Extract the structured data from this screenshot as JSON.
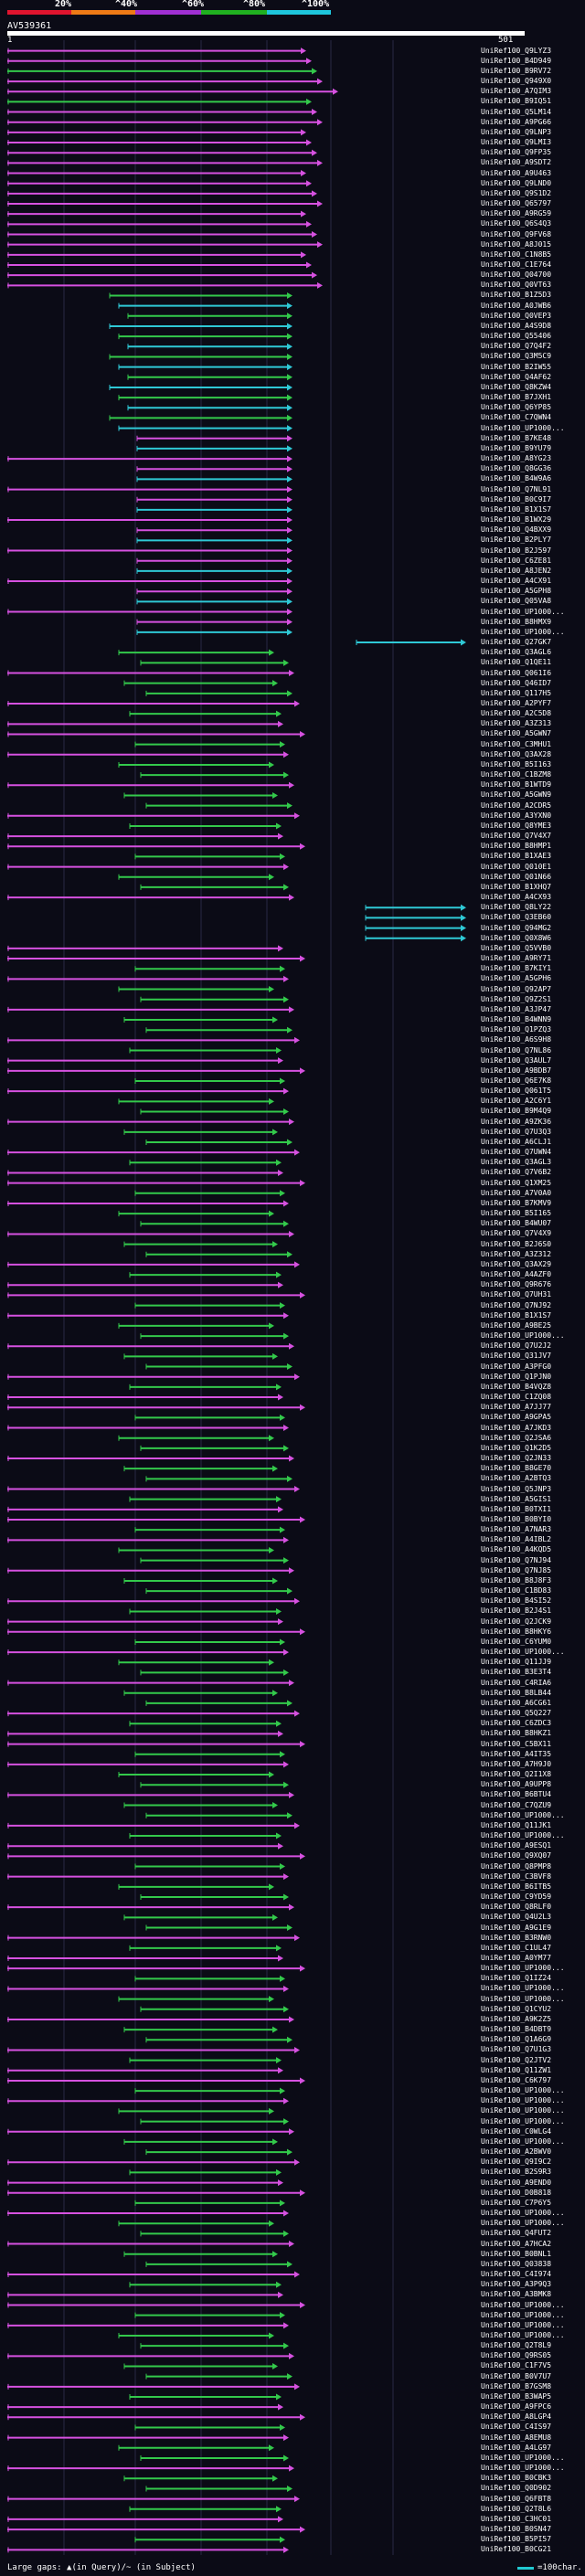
{
  "header": {
    "percent_labels": [
      "20%",
      "^40%",
      "^60%",
      "^80%",
      "^100%"
    ],
    "color_bands": [
      "#e0142e",
      "#ee7a16",
      "#a02fd2",
      "#20b020",
      "#1ec6dc"
    ],
    "query_id": "AV539361",
    "query_start": "1",
    "query_end": "501"
  },
  "colors": {
    "magenta": "#d651e0",
    "green": "#33c94b",
    "cyan": "#2fc9d6",
    "grid": "#2a2a44"
  },
  "hits": [
    "UniRef100_Q9LYZ3",
    "UniRef100_B4D949",
    "UniRef100_B9RV72",
    "UniRef100_Q949X0",
    "UniRef100_A7QIM3",
    "UniRef100_B9IQ51",
    "UniRef100_Q5LM14",
    "UniRef100_A9PG66",
    "UniRef100_Q9LNP3",
    "UniRef100_Q9LMI3",
    "UniRef100_Q9FP35",
    "UniRef100_A9SDT2",
    "UniRef100_A9U463",
    "UniRef100_Q9LND0",
    "UniRef100_Q9S1D2",
    "UniRef100_Q65797",
    "UniRef100_A9RG59",
    "UniRef100_Q6S4Q3",
    "UniRef100_Q9FV68",
    "UniRef100_A8J015",
    "UniRef100_C1N8B5",
    "UniRef100_C1E764",
    "UniRef100_Q04700",
    "UniRef100_Q0VT63",
    "UniRef100_B1Z5D3",
    "UniRef100_A0JWB6",
    "UniRef100_Q0VEP3",
    "UniRef100_A4S9D8",
    "UniRef100_Q55406",
    "UniRef100_Q7Q4F2",
    "UniRef100_Q3M5C9",
    "UniRef100_B2IW55",
    "UniRef100_Q4AF62",
    "UniRef100_Q8KZW4",
    "UniRef100_B7JXH1",
    "UniRef100_Q6YP85",
    "UniRef100_C7QWN4",
    "UniRef100_UP1000...",
    "UniRef100_B7KE48",
    "UniRef100_B9YU79",
    "UniRef100_A8YG23",
    "UniRef100_Q8GG36",
    "UniRef100_B4W9A6",
    "UniRef100_Q7NL91",
    "UniRef100_B0C9I7",
    "UniRef100_B1X1S7",
    "UniRef100_B1WX29",
    "UniRef100_Q4BXX9",
    "UniRef100_B2PLY7",
    "UniRef100_B2J597",
    "UniRef100_C6ZE81",
    "UniRef100_A8JEN2",
    "UniRef100_A4CX91",
    "UniRef100_A5GPH8",
    "UniRef100_Q05VA8",
    "UniRef100_UP1000...",
    "UniRef100_B8HMX9",
    "UniRef100_UP1000...",
    "UniRef100_Q27GK7",
    "UniRef100_Q3AGL6",
    "UniRef100_Q1QE11",
    "UniRef100_Q061I6",
    "UniRef100_Q46ID7",
    "UniRef100_Q117H5",
    "UniRef100_A2PYF7",
    "UniRef100_A2C5D8",
    "UniRef100_A3Z313",
    "UniRef100_A5GWN7",
    "UniRef100_C3MHU1",
    "UniRef100_Q3AX28",
    "UniRef100_B5I163",
    "UniRef100_C1BZM8",
    "UniRef100_B1WTD9",
    "UniRef100_A5GWN9",
    "UniRef100_A2CDR5",
    "UniRef100_A3YXN0",
    "UniRef100_Q8YME3",
    "UniRef100_Q7V4X7",
    "UniRef100_B8HMP1",
    "UniRef100_B1XAE3",
    "UniRef100_Q010E1",
    "UniRef100_Q01N66",
    "UniRef100_B1XHQ7",
    "UniRef100_A4CX93",
    "UniRef100_Q8LY22",
    "UniRef100_Q3EB60",
    "UniRef100_Q94MG2",
    "UniRef100_Q0X8W6",
    "UniRef100_Q5VVB0",
    "UniRef100_A9RY71",
    "UniRef100_B7KIY1",
    "UniRef100_A5GPH6",
    "UniRef100_Q92AP7",
    "UniRef100_Q9Z2S1",
    "UniRef100_A3JP47",
    "UniRef100_B4WNN9",
    "UniRef100_Q1PZQ3",
    "UniRef100_A6S9H8",
    "UniRef100_Q7NL86",
    "UniRef100_Q3AUL7",
    "UniRef100_A9BDB7",
    "UniRef100_Q6E7K8",
    "UniRef100_Q061T5",
    "UniRef100_A2C6Y1",
    "UniRef100_B9M4Q9",
    "UniRef100_A9ZK36",
    "UniRef100_Q7U3Q3",
    "UniRef100_A6CLJ1",
    "UniRef100_Q7UWN4",
    "UniRef100_Q3AGL3",
    "UniRef100_Q7V6B2",
    "UniRef100_Q1XM25",
    "UniRef100_A7V0A0",
    "UniRef100_B7KMV9",
    "UniRef100_B5I165",
    "UniRef100_B4WU07",
    "UniRef100_Q7V4X9",
    "UniRef100_B2J6S0",
    "UniRef100_A3Z312",
    "UniRef100_Q3AX29",
    "UniRef100_A4AZF0",
    "UniRef100_Q9R676",
    "UniRef100_Q7UH31",
    "UniRef100_Q7NJ92",
    "UniRef100_B1X1S7",
    "UniRef100_A9BE25",
    "UniRef100_UP1000...",
    "UniRef100_Q7U2J2",
    "UniRef100_Q31JV7",
    "UniRef100_A3PFG0",
    "UniRef100_Q1PJN0",
    "UniRef100_B4VQZ8",
    "UniRef100_C1ZQ08",
    "UniRef100_A7JJ77",
    "UniRef100_A9GPA5",
    "UniRef100_A7JKD3",
    "UniRef100_Q2JSA6",
    "UniRef100_Q1K2D5",
    "UniRef100_Q2JN33",
    "UniRef100_B8GE70",
    "UniRef100_A2BTQ3",
    "UniRef100_Q5JNP3",
    "UniRef100_A5GIS1",
    "UniRef100_B0TXI1",
    "UniRef100_B0BYI0",
    "UniRef100_A7NAR3",
    "UniRef100_A4IBL2",
    "UniRef100_A4KQD5",
    "UniRef100_Q7NJ94",
    "UniRef100_Q7NJ85",
    "UniRef100_B8J8F3",
    "UniRef100_C1BD83",
    "UniRef100_B4SI52",
    "UniRef100_B2J4S1",
    "UniRef100_Q2JCK9",
    "UniRef100_B8HKY6",
    "UniRef100_C6YUM0",
    "UniRef100_UP1000...",
    "UniRef100_Q11JJ9",
    "UniRef100_B3E3T4",
    "UniRef100_C4RIA6",
    "UniRef100_B8LB44",
    "UniRef100_A6CG61",
    "UniRef100_Q5Q227",
    "UniRef100_C6ZDC3",
    "UniRef100_B8HKZ1",
    "UniRef100_C5BX11",
    "UniRef100_A4IT35",
    "UniRef100_A7H9J0",
    "UniRef100_Q2I1X8",
    "UniRef100_A9UPP8",
    "UniRef100_B6BTU4",
    "UniRef100_C7QZU9",
    "UniRef100_UP1000...",
    "UniRef100_Q11JK1",
    "UniRef100_UP1000...",
    "UniRef100_A9ESQ1",
    "UniRef100_Q9XQ07",
    "UniRef100_Q8PMP8",
    "UniRef100_C3BVF8",
    "UniRef100_B6ITB5",
    "UniRef100_C9YD59",
    "UniRef100_Q8RLF0",
    "UniRef100_Q4U2L3",
    "UniRef100_A9G1E9",
    "UniRef100_B3RNW0",
    "UniRef100_C1UL47",
    "UniRef100_A0YM77",
    "UniRef100_UP1000...",
    "UniRef100_Q1IZ24",
    "UniRef100_UP1000...",
    "UniRef100_UP1000...",
    "UniRef100_Q1CYU2",
    "UniRef100_A9K2Z5",
    "UniRef100_B4DBT9",
    "UniRef100_Q1A6G9",
    "UniRef100_Q7U1G3",
    "UniRef100_Q2JTV2",
    "UniRef100_Q11ZW1",
    "UniRef100_C6K797",
    "UniRef100_UP1000...",
    "UniRef100_UP1000...",
    "UniRef100_UP1000...",
    "UniRef100_UP1000...",
    "UniRef100_C0WLG4",
    "UniRef100_UP1000...",
    "UniRef100_A2BWV0",
    "UniRef100_Q9I9C2",
    "UniRef100_B2S9R3",
    "UniRef100_A9END0",
    "UniRef100_D0B818",
    "UniRef100_C7P6Y5",
    "UniRef100_UP1000...",
    "UniRef100_UP1000...",
    "UniRef100_Q4FUT2",
    "UniRef100_A7HCA2",
    "UniRef100_B0BNL1",
    "UniRef100_Q03838",
    "UniRef100_C4I974",
    "UniRef100_A3P9Q3",
    "UniRef100_A3BMK8",
    "UniRef100_UP1000...",
    "UniRef100_UP1000...",
    "UniRef100_UP1000...",
    "UniRef100_UP1000...",
    "UniRef100_Q2T8L9",
    "UniRef100_Q9RS05",
    "UniRef100_C1F7V5",
    "UniRef100_B0V7U7",
    "UniRef100_B7GSM8",
    "UniRef100_B3WAP5",
    "UniRef100_A9FPC6",
    "UniRef100_A8LGP4",
    "UniRef100_C4IS97",
    "UniRef100_A8EMU8",
    "UniRef100_A4LG97",
    "UniRef100_UP1000...",
    "UniRef100_UP1000...",
    "UniRef100_B0CBK3",
    "UniRef100_Q0D902",
    "UniRef100_Q6FBT8",
    "UniRef100_Q2T8L6",
    "UniRef100_C3HC01",
    "UniRef100_B0SN47",
    "UniRef100_B5PI57",
    "UniRef100_B0CG21"
  ],
  "legend": {
    "gaps_text": "Large gaps: ▲(in Query)/~ (in Subject)",
    "scale_text": "=100char."
  }
}
